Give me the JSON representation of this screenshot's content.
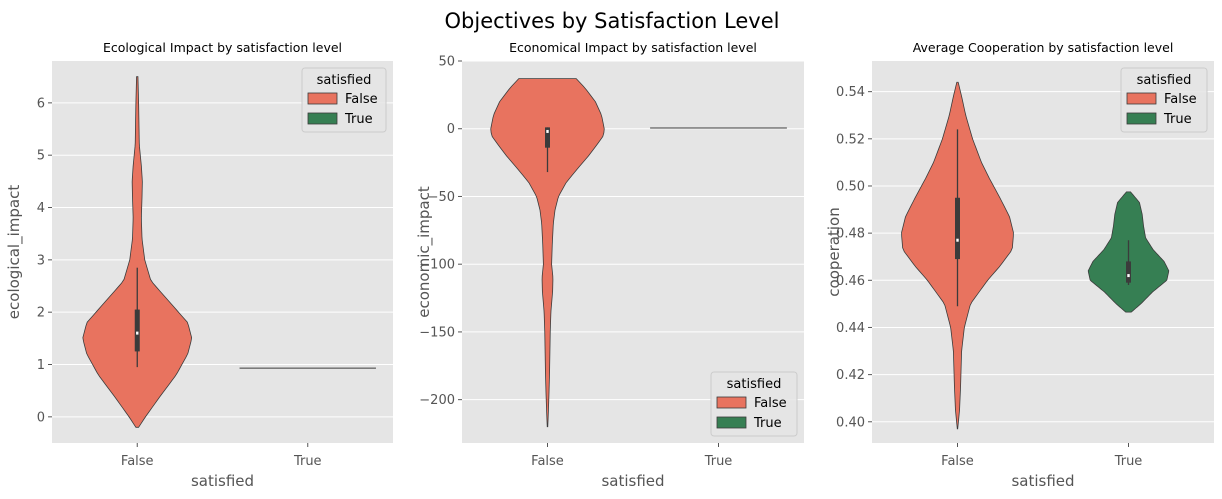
{
  "figure": {
    "title": "Objectives by Satisfaction Level"
  },
  "palette": {
    "False": "#e8735f",
    "True": "#367f53",
    "panel_bg": "#e5e5e5",
    "grid": "#ffffff",
    "outline": "#3b3b3b"
  },
  "chart_data": [
    {
      "type": "violin",
      "title": "Ecological Impact by satisfaction level",
      "xlabel": "satisfied",
      "ylabel": "ecological_impact",
      "categories": [
        "False",
        "True"
      ],
      "ylim": [
        -0.5,
        6.8
      ],
      "yticks": [
        0,
        1,
        2,
        3,
        4,
        5,
        6
      ],
      "grid": true,
      "legend": {
        "title": "satisfied",
        "entries": [
          "False",
          "True"
        ],
        "position": "top-right"
      },
      "violins": [
        {
          "category": "False",
          "support": [
            -0.2,
            6.5
          ],
          "profile": [
            [
              -0.2,
              0.02
            ],
            [
              0,
              0.12
            ],
            [
              0.4,
              0.34
            ],
            [
              0.8,
              0.57
            ],
            [
              1.2,
              0.74
            ],
            [
              1.5,
              0.8
            ],
            [
              1.8,
              0.74
            ],
            [
              2.2,
              0.47
            ],
            [
              2.6,
              0.2
            ],
            [
              3.0,
              0.11
            ],
            [
              3.4,
              0.07
            ],
            [
              3.8,
              0.06
            ],
            [
              4.2,
              0.07
            ],
            [
              4.5,
              0.075
            ],
            [
              4.8,
              0.06
            ],
            [
              5.2,
              0.03
            ],
            [
              5.6,
              0.025
            ],
            [
              6.0,
              0.02
            ],
            [
              6.5,
              0.01
            ]
          ],
          "box": {
            "q1": 1.25,
            "median": 1.6,
            "q3": 2.05,
            "whisker_low": 0.95,
            "whisker_high": 2.85
          }
        },
        {
          "category": "True",
          "support": [
            0.91,
            0.95
          ],
          "flat_value": 0.93,
          "halfwidth": 0.8
        }
      ]
    },
    {
      "type": "violin",
      "title": "Economical Impact by satisfaction level",
      "xlabel": "satisfied",
      "ylabel": "economic_impact",
      "categories": [
        "False",
        "True"
      ],
      "ylim": [
        -232,
        50
      ],
      "yticks": [
        -200,
        -150,
        -100,
        -50,
        0,
        50
      ],
      "grid": true,
      "legend": {
        "title": "satisfied",
        "entries": [
          "False",
          "True"
        ],
        "position": "bottom-right"
      },
      "violins": [
        {
          "category": "False",
          "support": [
            -220,
            37
          ],
          "profile": [
            [
              37,
              0.42
            ],
            [
              30,
              0.55
            ],
            [
              20,
              0.7
            ],
            [
              10,
              0.79
            ],
            [
              0,
              0.83
            ],
            [
              -5,
              0.82
            ],
            [
              -12,
              0.72
            ],
            [
              -20,
              0.6
            ],
            [
              -30,
              0.43
            ],
            [
              -40,
              0.27
            ],
            [
              -50,
              0.16
            ],
            [
              -60,
              0.11
            ],
            [
              -70,
              0.085
            ],
            [
              -85,
              0.07
            ],
            [
              -100,
              0.06
            ],
            [
              -110,
              0.08
            ],
            [
              -120,
              0.075
            ],
            [
              -135,
              0.05
            ],
            [
              -150,
              0.04
            ],
            [
              -165,
              0.035
            ],
            [
              -180,
              0.03
            ],
            [
              -195,
              0.022
            ],
            [
              -210,
              0.012
            ],
            [
              -220,
              0.004
            ]
          ],
          "box": {
            "q1": -14,
            "median": -2,
            "q3": 1,
            "whisker_low": -32,
            "whisker_high": 1
          }
        },
        {
          "category": "True",
          "support": [
            0,
            0
          ],
          "flat_value": 0.5,
          "halfwidth": 0.8
        }
      ]
    },
    {
      "type": "violin",
      "title": "Average Cooperation by satisfaction level",
      "xlabel": "satisfied",
      "ylabel": "cooperation",
      "categories": [
        "False",
        "True"
      ],
      "ylim": [
        0.391,
        0.553
      ],
      "yticks": [
        0.4,
        0.42,
        0.44,
        0.46,
        0.48,
        0.5,
        0.52,
        0.54
      ],
      "grid": true,
      "legend": {
        "title": "satisfied",
        "entries": [
          "False",
          "True"
        ],
        "position": "top-right"
      },
      "violins": [
        {
          "category": "False",
          "support": [
            0.397,
            0.544
          ],
          "profile": [
            [
              0.397,
              0.003
            ],
            [
              0.405,
              0.03
            ],
            [
              0.415,
              0.045
            ],
            [
              0.42,
              0.05
            ],
            [
              0.43,
              0.06
            ],
            [
              0.44,
              0.1
            ],
            [
              0.45,
              0.19
            ],
            [
              0.46,
              0.44
            ],
            [
              0.466,
              0.62
            ],
            [
              0.473,
              0.8
            ],
            [
              0.48,
              0.82
            ],
            [
              0.487,
              0.76
            ],
            [
              0.495,
              0.62
            ],
            [
              0.503,
              0.47
            ],
            [
              0.51,
              0.35
            ],
            [
              0.52,
              0.22
            ],
            [
              0.53,
              0.12
            ],
            [
              0.538,
              0.06
            ],
            [
              0.544,
              0.01
            ]
          ],
          "box": {
            "q1": 0.469,
            "median": 0.477,
            "q3": 0.495,
            "whisker_low": 0.449,
            "whisker_high": 0.524
          }
        },
        {
          "category": "True",
          "support": [
            0.4465,
            0.4975
          ],
          "profile": [
            [
              0.4465,
              0.04
            ],
            [
              0.45,
              0.18
            ],
            [
              0.455,
              0.35
            ],
            [
              0.46,
              0.56
            ],
            [
              0.464,
              0.59
            ],
            [
              0.468,
              0.52
            ],
            [
              0.473,
              0.36
            ],
            [
              0.478,
              0.25
            ],
            [
              0.483,
              0.22
            ],
            [
              0.488,
              0.2
            ],
            [
              0.493,
              0.16
            ],
            [
              0.4975,
              0.03
            ]
          ],
          "box": {
            "q1": 0.459,
            "median": 0.462,
            "q3": 0.468,
            "whisker_low": 0.458,
            "whisker_high": 0.477
          }
        }
      ]
    }
  ]
}
